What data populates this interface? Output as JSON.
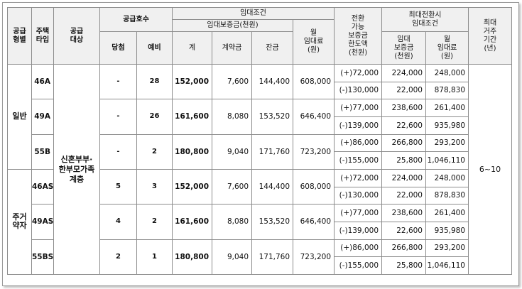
{
  "headers": {
    "supply_type": "공급\n형별",
    "house_type": "주택\n타입",
    "supply_target": "공급\n대상",
    "supply_units": "공급호수",
    "won": "당첨",
    "reserve": "예비",
    "rent_conditions": "임대조건",
    "deposit": "임대보증금(천원)",
    "total": "계",
    "down_payment": "계약금",
    "balance": "잔금",
    "monthly_rent": "월\n임대료\n(원)",
    "convertible": "전환\n가능\n보증금\n한도액\n(천원)",
    "max_conv": "최대전환시\n임대조건",
    "max_deposit": "임대\n보증금\n(천원)",
    "max_rent": "월\n임대료\n(원)",
    "max_stay": "최대\n거주\n기간\n(년)"
  },
  "supply_target": "신혼부부·\n한부모가족\n계층",
  "max_stay": "6~10",
  "groups": [
    {
      "label": "일반",
      "rows": [
        {
          "type": "46A",
          "won": "-",
          "reserve": "28",
          "total": "152,000",
          "down": "7,600",
          "balance": "144,400",
          "rent": "608,000",
          "conv": [
            {
              "limit": "(+)72,000",
              "deposit": "224,000",
              "rent": "248,000"
            },
            {
              "limit": "(-)130,000",
              "deposit": "22,000",
              "rent": "878,830"
            }
          ]
        },
        {
          "type": "49A",
          "won": "-",
          "reserve": "26",
          "total": "161,600",
          "down": "8,080",
          "balance": "153,520",
          "rent": "646,400",
          "conv": [
            {
              "limit": "(+)77,000",
              "deposit": "238,600",
              "rent": "261,400"
            },
            {
              "limit": "(-)139,000",
              "deposit": "22,600",
              "rent": "935,980"
            }
          ]
        },
        {
          "type": "55B",
          "won": "-",
          "reserve": "2",
          "total": "180,800",
          "down": "9,040",
          "balance": "171,760",
          "rent": "723,200",
          "conv": [
            {
              "limit": "(+)86,000",
              "deposit": "266,800",
              "rent": "293,200"
            },
            {
              "limit": "(-)155,000",
              "deposit": "25,800",
              "rent": "1,046,110"
            }
          ]
        }
      ]
    },
    {
      "label": "주거\n약자",
      "rows": [
        {
          "type": "46AS",
          "won": "5",
          "reserve": "3",
          "total": "152,000",
          "down": "7,600",
          "balance": "144,400",
          "rent": "608,000",
          "conv": [
            {
              "limit": "(+)72,000",
              "deposit": "224,000",
              "rent": "248,000"
            },
            {
              "limit": "(-)130,000",
              "deposit": "22,000",
              "rent": "878,830"
            }
          ]
        },
        {
          "type": "49AS",
          "won": "4",
          "reserve": "2",
          "total": "161,600",
          "down": "8,080",
          "balance": "153,520",
          "rent": "646,400",
          "conv": [
            {
              "limit": "(+)77,000",
              "deposit": "238,600",
              "rent": "261,400"
            },
            {
              "limit": "(-)139,000",
              "deposit": "22,600",
              "rent": "935,980"
            }
          ]
        },
        {
          "type": "55BS",
          "won": "2",
          "reserve": "1",
          "total": "180,800",
          "down": "9,040",
          "balance": "171,760",
          "rent": "723,200",
          "conv": [
            {
              "limit": "(+)86,000",
              "deposit": "266,800",
              "rent": "293,200"
            },
            {
              "limit": "(-)155,000",
              "deposit": "25,800",
              "rent": "1,046,110"
            }
          ]
        }
      ]
    }
  ]
}
